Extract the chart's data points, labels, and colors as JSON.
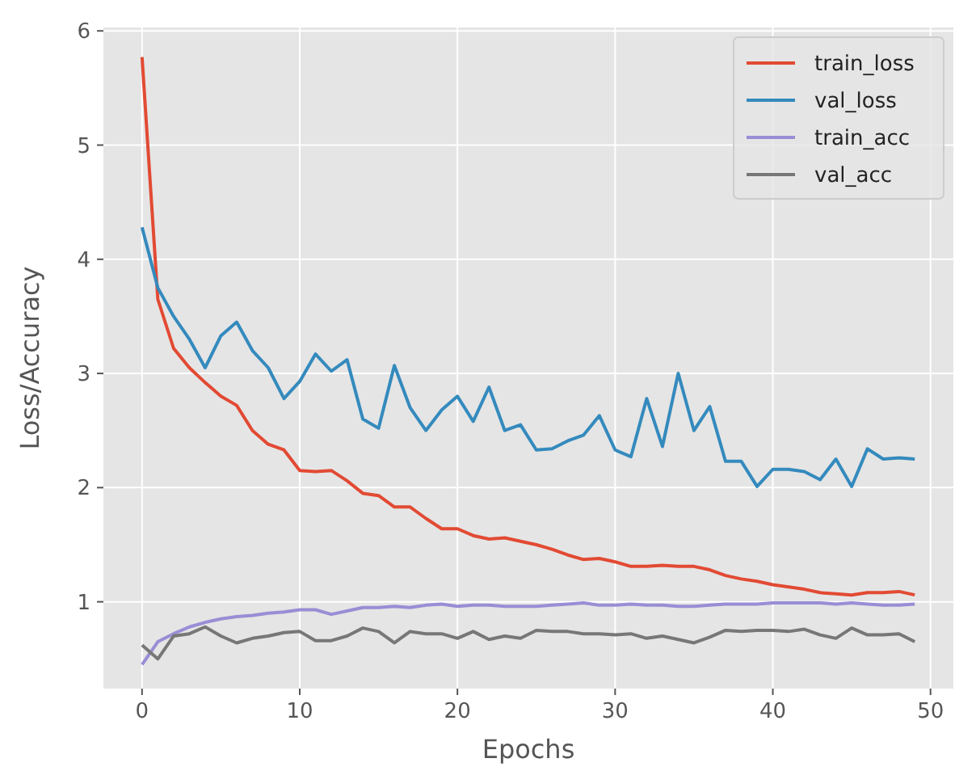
{
  "chart_data": {
    "type": "line",
    "xlabel": "Epochs",
    "ylabel": "Loss/Accuracy",
    "x": [
      0,
      1,
      2,
      3,
      4,
      5,
      6,
      7,
      8,
      9,
      10,
      11,
      12,
      13,
      14,
      15,
      16,
      17,
      18,
      19,
      20,
      21,
      22,
      23,
      24,
      25,
      26,
      27,
      28,
      29,
      30,
      31,
      32,
      33,
      34,
      35,
      36,
      37,
      38,
      39,
      40,
      41,
      42,
      43,
      44,
      45,
      46,
      47,
      48,
      49
    ],
    "series": [
      {
        "name": "train_loss",
        "color": "#e24a33",
        "values": [
          5.77,
          3.65,
          3.22,
          3.05,
          2.92,
          2.8,
          2.72,
          2.5,
          2.38,
          2.33,
          2.15,
          2.14,
          2.15,
          2.06,
          1.95,
          1.93,
          1.83,
          1.83,
          1.73,
          1.64,
          1.64,
          1.58,
          1.55,
          1.56,
          1.53,
          1.5,
          1.46,
          1.41,
          1.37,
          1.38,
          1.35,
          1.31,
          1.31,
          1.32,
          1.31,
          1.31,
          1.28,
          1.23,
          1.2,
          1.18,
          1.15,
          1.13,
          1.11,
          1.08,
          1.07,
          1.06,
          1.08,
          1.08,
          1.09,
          1.06
        ]
      },
      {
        "name": "val_loss",
        "color": "#348abd",
        "values": [
          4.28,
          3.75,
          3.5,
          3.3,
          3.05,
          3.33,
          3.45,
          3.2,
          3.05,
          2.78,
          2.93,
          3.17,
          3.02,
          3.12,
          2.6,
          2.52,
          3.07,
          2.7,
          2.5,
          2.68,
          2.8,
          2.58,
          2.88,
          2.5,
          2.55,
          2.33,
          2.34,
          2.41,
          2.46,
          2.63,
          2.33,
          2.27,
          2.78,
          2.36,
          3.0,
          2.5,
          2.71,
          2.23,
          2.23,
          2.01,
          2.16,
          2.16,
          2.14,
          2.07,
          2.25,
          2.01,
          2.34,
          2.25,
          2.26,
          2.25
        ]
      },
      {
        "name": "train_acc",
        "color": "#988ed5",
        "values": [
          0.45,
          0.65,
          0.72,
          0.78,
          0.82,
          0.85,
          0.87,
          0.88,
          0.9,
          0.91,
          0.93,
          0.93,
          0.89,
          0.92,
          0.95,
          0.95,
          0.96,
          0.95,
          0.97,
          0.98,
          0.96,
          0.97,
          0.97,
          0.96,
          0.96,
          0.96,
          0.97,
          0.98,
          0.99,
          0.97,
          0.97,
          0.98,
          0.97,
          0.97,
          0.96,
          0.96,
          0.97,
          0.98,
          0.98,
          0.98,
          0.99,
          0.99,
          0.99,
          0.99,
          0.98,
          0.99,
          0.98,
          0.97,
          0.97,
          0.98
        ]
      },
      {
        "name": "val_acc",
        "color": "#777777",
        "values": [
          0.62,
          0.5,
          0.7,
          0.72,
          0.78,
          0.7,
          0.64,
          0.68,
          0.7,
          0.73,
          0.74,
          0.66,
          0.66,
          0.7,
          0.77,
          0.74,
          0.64,
          0.74,
          0.72,
          0.72,
          0.68,
          0.74,
          0.67,
          0.7,
          0.68,
          0.75,
          0.74,
          0.74,
          0.72,
          0.72,
          0.71,
          0.72,
          0.68,
          0.7,
          0.67,
          0.64,
          0.69,
          0.75,
          0.74,
          0.75,
          0.75,
          0.74,
          0.76,
          0.71,
          0.68,
          0.77,
          0.71,
          0.71,
          0.72,
          0.65
        ]
      }
    ],
    "xlim": [
      -2.45,
      51.45
    ],
    "ylim": [
      0.24,
      6.03
    ],
    "xticks": [
      0,
      10,
      20,
      30,
      40,
      50
    ],
    "yticks": [
      1,
      2,
      3,
      4,
      5,
      6
    ],
    "grid": true,
    "legend": "top right"
  }
}
